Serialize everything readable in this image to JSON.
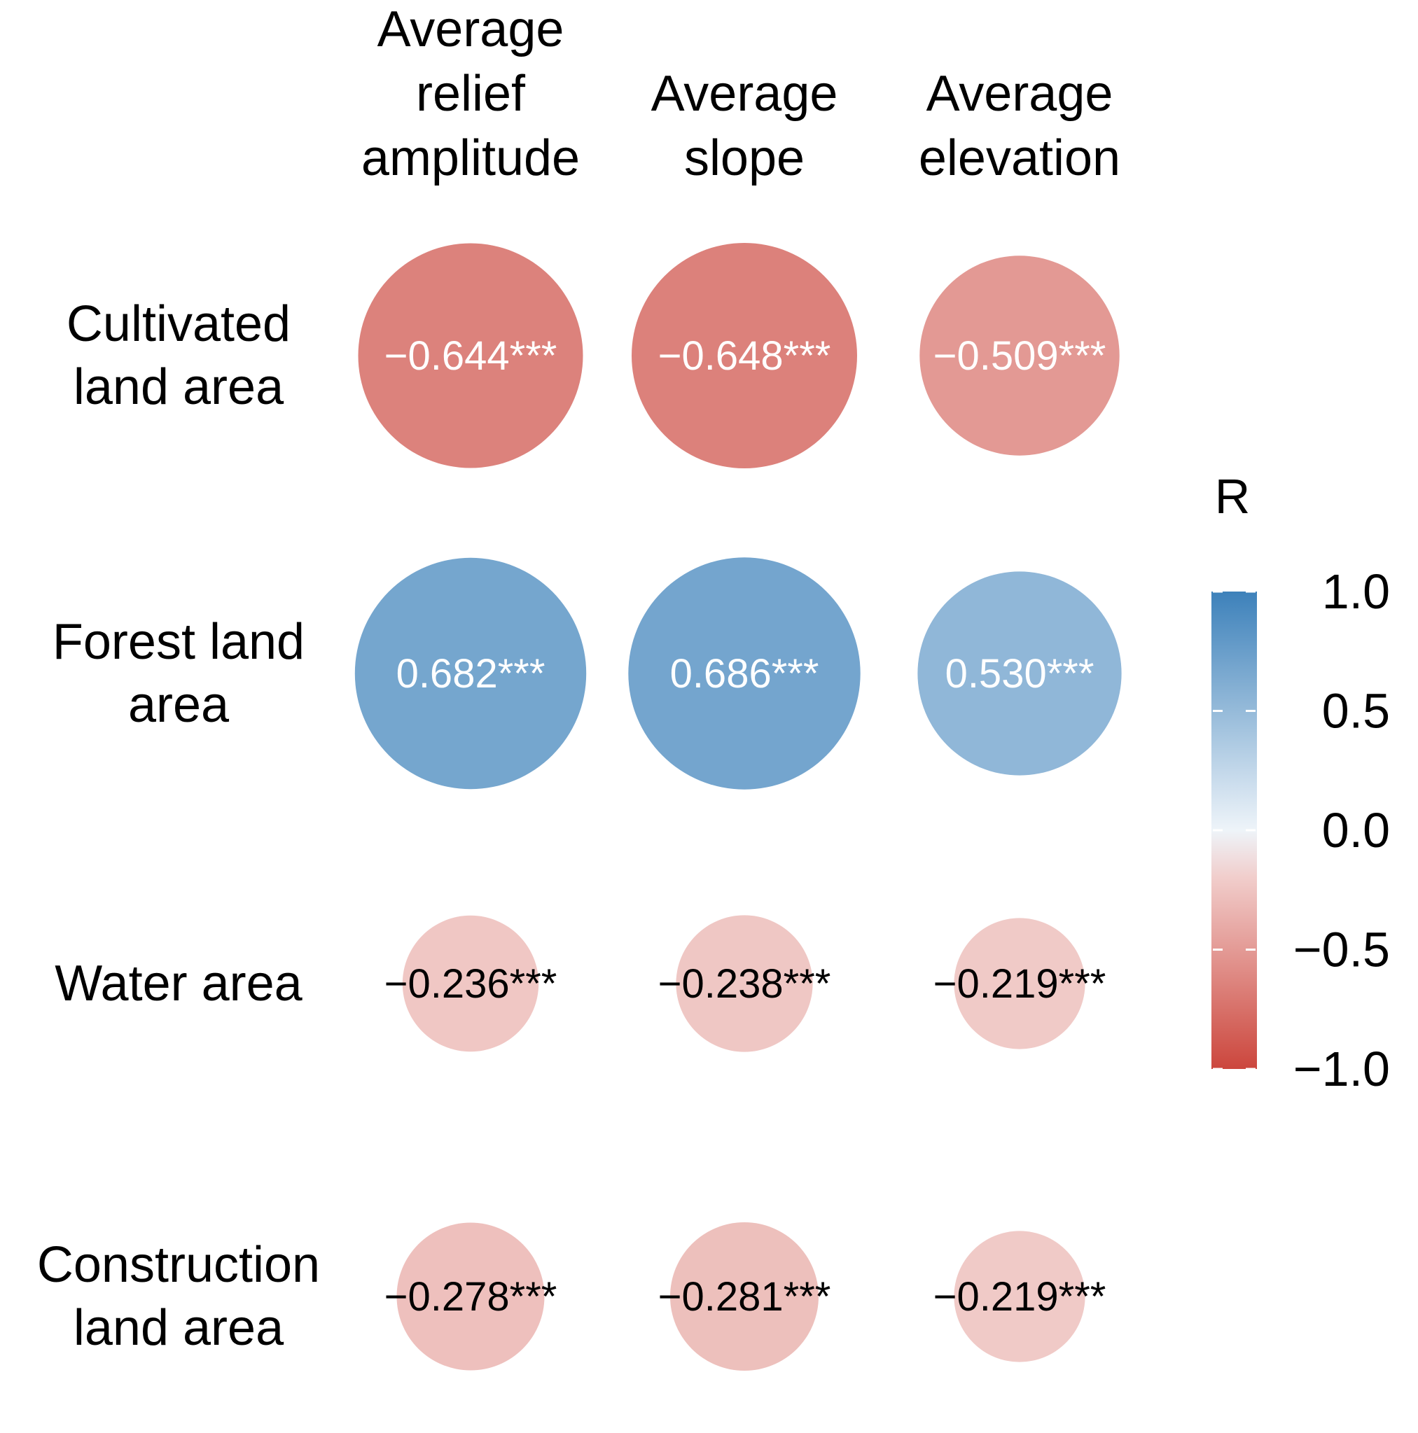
{
  "chart_data": {
    "type": "heatmap",
    "style": "correlation-circles",
    "columns": [
      {
        "label_lines": [
          "Average",
          "relief",
          "amplitude"
        ]
      },
      {
        "label_lines": [
          "Average",
          "slope"
        ]
      },
      {
        "label_lines": [
          "Average",
          "elevation"
        ]
      }
    ],
    "rows": [
      {
        "label_lines": [
          "Cultivated",
          "land area"
        ]
      },
      {
        "label_lines": [
          "Forest land",
          "area"
        ]
      },
      {
        "label_lines": [
          "Water area"
        ]
      },
      {
        "label_lines": [
          "Construction",
          "land area"
        ]
      }
    ],
    "values": [
      [
        -0.644,
        -0.648,
        -0.509
      ],
      [
        0.682,
        0.686,
        0.53
      ],
      [
        -0.236,
        -0.238,
        -0.219
      ],
      [
        -0.278,
        -0.281,
        -0.219
      ]
    ],
    "cell_labels": [
      [
        "−0.644***",
        "−0.648***",
        "−0.509***"
      ],
      [
        "0.682***",
        "0.686***",
        "0.530***"
      ],
      [
        "−0.236***",
        "−0.238***",
        "−0.219***"
      ],
      [
        "−0.278***",
        "−0.281***",
        "−0.219***"
      ]
    ],
    "legend": {
      "title": "R",
      "range": [
        -1.0,
        1.0
      ],
      "ticks": [
        1.0,
        0.5,
        0.0,
        -0.5,
        -1.0
      ],
      "tick_labels": [
        "1.0",
        "0.5",
        "0.0",
        "−0.5",
        "−1.0"
      ],
      "placement": "right"
    },
    "colors": {
      "positive": "#2E78B5",
      "negative": "#C8382E",
      "zero": "#FFFFFF",
      "label_light": "#FFFFFF",
      "label_dark": "#000000"
    }
  }
}
